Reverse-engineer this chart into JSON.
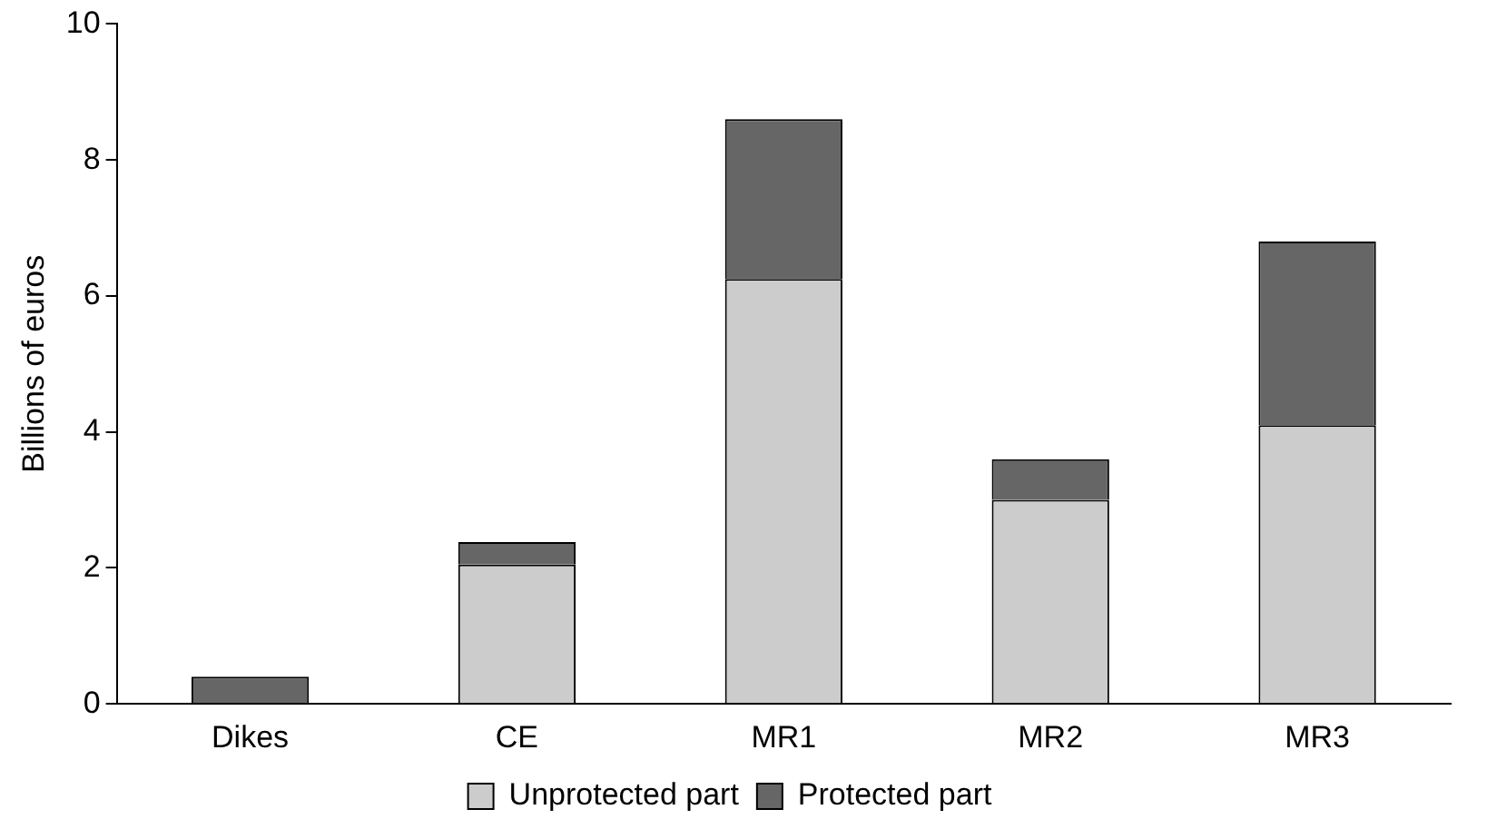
{
  "chart_data": {
    "type": "bar",
    "stacked": true,
    "ylabel": "Billions of euros",
    "categories": [
      "Dikes",
      "CE",
      "MR1",
      "MR2",
      "MR3"
    ],
    "series": [
      {
        "name": "Unprotected part",
        "color": "#cccccc",
        "values": [
          0,
          2.05,
          6.25,
          3.0,
          4.1
        ]
      },
      {
        "name": "Protected part",
        "color": "#666666",
        "values": [
          0.4,
          0.33,
          2.35,
          0.6,
          2.7
        ]
      }
    ],
    "ylim": [
      0,
      10
    ],
    "yticks": [
      0,
      2,
      4,
      6,
      8,
      10
    ],
    "grid": false,
    "legend": "bottom"
  }
}
